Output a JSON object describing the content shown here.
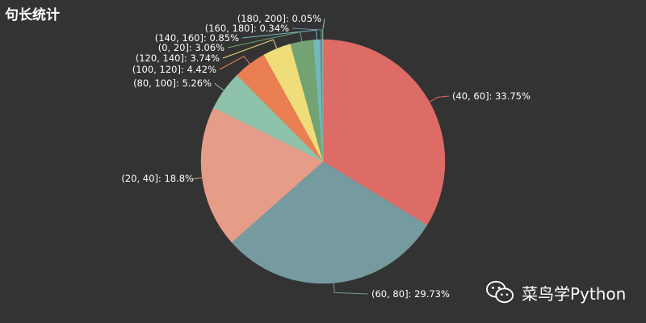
{
  "chart_data": {
    "type": "pie",
    "title": "句长统计",
    "slices": [
      {
        "label": "(40, 60]: 33.75%",
        "category": "(40, 60]",
        "value": 33.75,
        "color": "#dd6b66"
      },
      {
        "label": "(60, 80]: 29.73%",
        "category": "(60, 80]",
        "value": 29.73,
        "color": "#759aa0"
      },
      {
        "label": "(20, 40]: 18.8%",
        "category": "(20, 40]",
        "value": 18.8,
        "color": "#e69d87"
      },
      {
        "label": "(80, 100]: 5.26%",
        "category": "(80, 100]",
        "value": 5.26,
        "color": "#8dc1a9"
      },
      {
        "label": "(100, 120]: 4.42%",
        "category": "(100, 120]",
        "value": 4.42,
        "color": "#ea7e53"
      },
      {
        "label": "(120, 140]: 3.74%",
        "category": "(120, 140]",
        "value": 3.74,
        "color": "#eedd78"
      },
      {
        "label": "(0, 20]: 3.06%",
        "category": "(0, 20]",
        "value": 3.06,
        "color": "#73a373"
      },
      {
        "label": "(140, 160]: 0.85%",
        "category": "(140, 160]",
        "value": 0.85,
        "color": "#73b9bc"
      },
      {
        "label": "(160, 180]: 0.34%",
        "category": "(160, 180]",
        "value": 0.34,
        "color": "#7289ab"
      },
      {
        "label": "(180, 200]: 0.05%",
        "category": "(180, 200]",
        "value": 0.05,
        "color": "#91ca8c"
      }
    ]
  },
  "watermark": {
    "text": "菜鸟学Python",
    "icon": "wechat-icon"
  }
}
